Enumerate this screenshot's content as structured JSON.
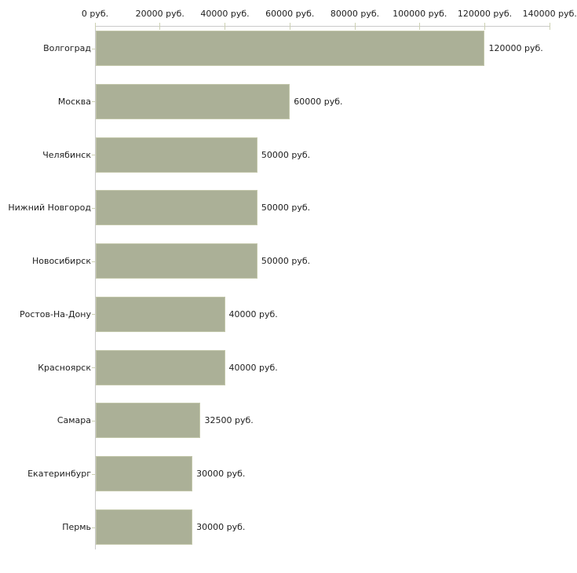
{
  "chart_data": {
    "type": "bar",
    "orientation": "horizontal",
    "title": "",
    "xlabel": "",
    "ylabel": "",
    "unit": "руб.",
    "grid": false,
    "legend": false,
    "categories": [
      "Волгоград",
      "Москва",
      "Челябинск",
      "Нижний Новгород",
      "Новосибирск",
      "Ростов-На-Дону",
      "Красноярск",
      "Самара",
      "Екатеринбург",
      "Пермь"
    ],
    "values": [
      120000,
      60000,
      50000,
      50000,
      50000,
      40000,
      40000,
      32500,
      30000,
      30000
    ],
    "value_labels": [
      "120000 руб.",
      "60000 руб.",
      "50000 руб.",
      "50000 руб.",
      "50000 руб.",
      "40000 руб.",
      "40000 руб.",
      "32500 руб.",
      "30000 руб.",
      "30000 руб."
    ],
    "xlim": [
      0,
      140000
    ],
    "x_tick_values": [
      0,
      20000,
      40000,
      60000,
      80000,
      100000,
      120000,
      140000
    ],
    "x_tick_labels": [
      "0 руб.",
      "20000 руб.",
      "40000 руб.",
      "60000 руб.",
      "80000 руб.",
      "100000 руб.",
      "120000 руб.",
      "140000 руб."
    ],
    "colors": {
      "bar_fill": "#abb097",
      "bar_border": "#c3c7ab",
      "axis_line": "#c9c9c9",
      "tick_mark": "#cdd1b3",
      "label_text": "#1e1e1e",
      "background": "#ffffff"
    }
  }
}
